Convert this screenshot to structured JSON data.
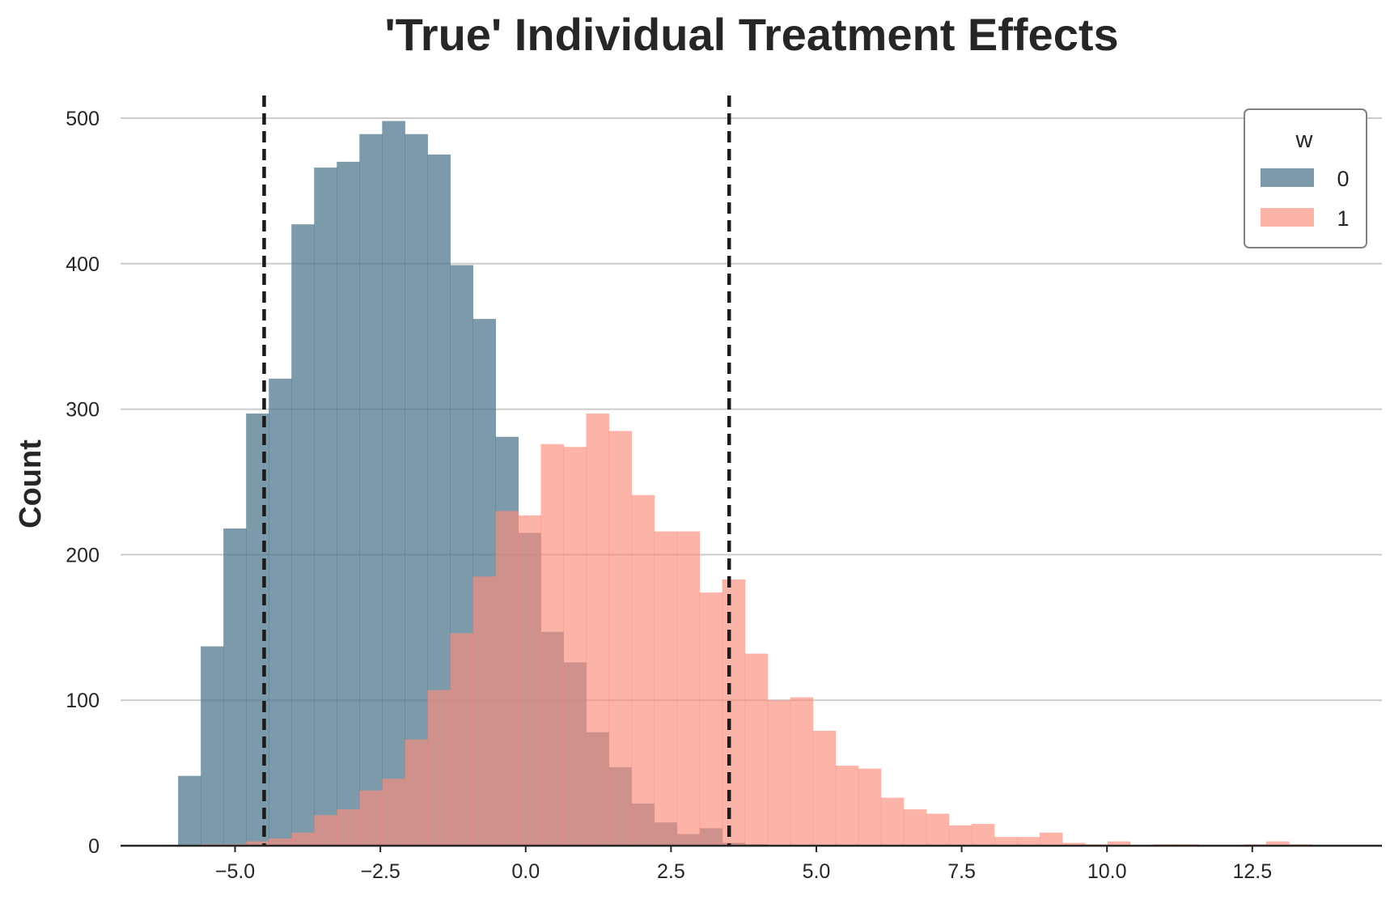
{
  "chart_data": {
    "type": "bar",
    "title": "'True' Individual Treatment Effects",
    "xlabel": "",
    "ylabel": "Count",
    "xlim": [
      -6.97,
      14.73
    ],
    "ylim": [
      0,
      525
    ],
    "x_ticks": [
      -5.0,
      -2.5,
      0.0,
      2.5,
      5.0,
      7.5,
      10.0,
      12.5
    ],
    "x_tick_labels": [
      "−5.0",
      "−2.5",
      "0.0",
      "2.5",
      "5.0",
      "7.5",
      "10.0",
      "12.5"
    ],
    "y_ticks": [
      0,
      100,
      200,
      300,
      400,
      500
    ],
    "y_tick_labels": [
      "0",
      "100",
      "200",
      "300",
      "400",
      "500"
    ],
    "grid": "horizontal",
    "bin_width": 0.39,
    "bin_start": -5.98,
    "series": [
      {
        "name": "0",
        "color": "#51788f",
        "values": [
          48,
          137,
          218,
          297,
          321,
          427,
          466,
          470,
          489,
          498,
          489,
          475,
          399,
          362,
          281,
          215,
          147,
          126,
          78,
          54,
          29,
          16,
          8,
          12,
          2,
          1
        ]
      },
      {
        "name": "1",
        "color": "#fa8c7a",
        "values": [
          0,
          1,
          1,
          3,
          5,
          9,
          21,
          25,
          38,
          46,
          73,
          107,
          146,
          185,
          230,
          227,
          276,
          274,
          297,
          285,
          241,
          216,
          216,
          174,
          183,
          132,
          100,
          102,
          79,
          55,
          53,
          33,
          25,
          22,
          14,
          15,
          6,
          6,
          9,
          2,
          1,
          3,
          0,
          1,
          1,
          0,
          0,
          1,
          3,
          1
        ]
      }
    ],
    "vlines": [
      -4.5,
      3.5
    ],
    "legend": {
      "title": "w",
      "placement": "top-right",
      "entries": [
        "0",
        "1"
      ]
    }
  }
}
